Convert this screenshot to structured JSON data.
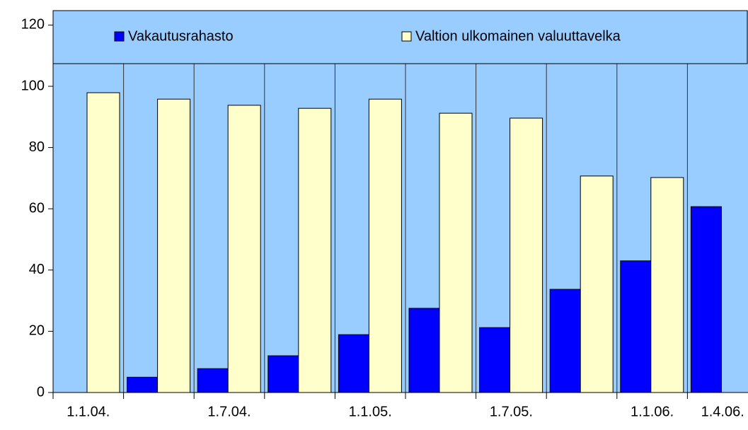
{
  "chart_data": {
    "type": "bar",
    "categories": [
      "1.1.04.",
      null,
      "1.7.04.",
      null,
      "1.1.05.",
      null,
      "1.7.05.",
      null,
      "1.1.06.",
      "1.4.06."
    ],
    "series": [
      {
        "name": "Vakautusrahasto",
        "color": "#0000ff",
        "values": [
          null,
          5,
          7.8,
          12,
          18.9,
          27.5,
          21.2,
          33.7,
          43,
          60.7
        ]
      },
      {
        "name": "Valtion ulkomainen valuuttavelka",
        "color": "#ffffcc",
        "values": [
          97.9,
          95.8,
          93.8,
          92.8,
          95.8,
          91.2,
          89.6,
          70.7,
          70.2,
          null
        ]
      }
    ],
    "ylim": [
      0,
      120
    ],
    "yticks": [
      0,
      20,
      40,
      60,
      80,
      100,
      120
    ],
    "legend": "top",
    "background": "#99ccff"
  }
}
